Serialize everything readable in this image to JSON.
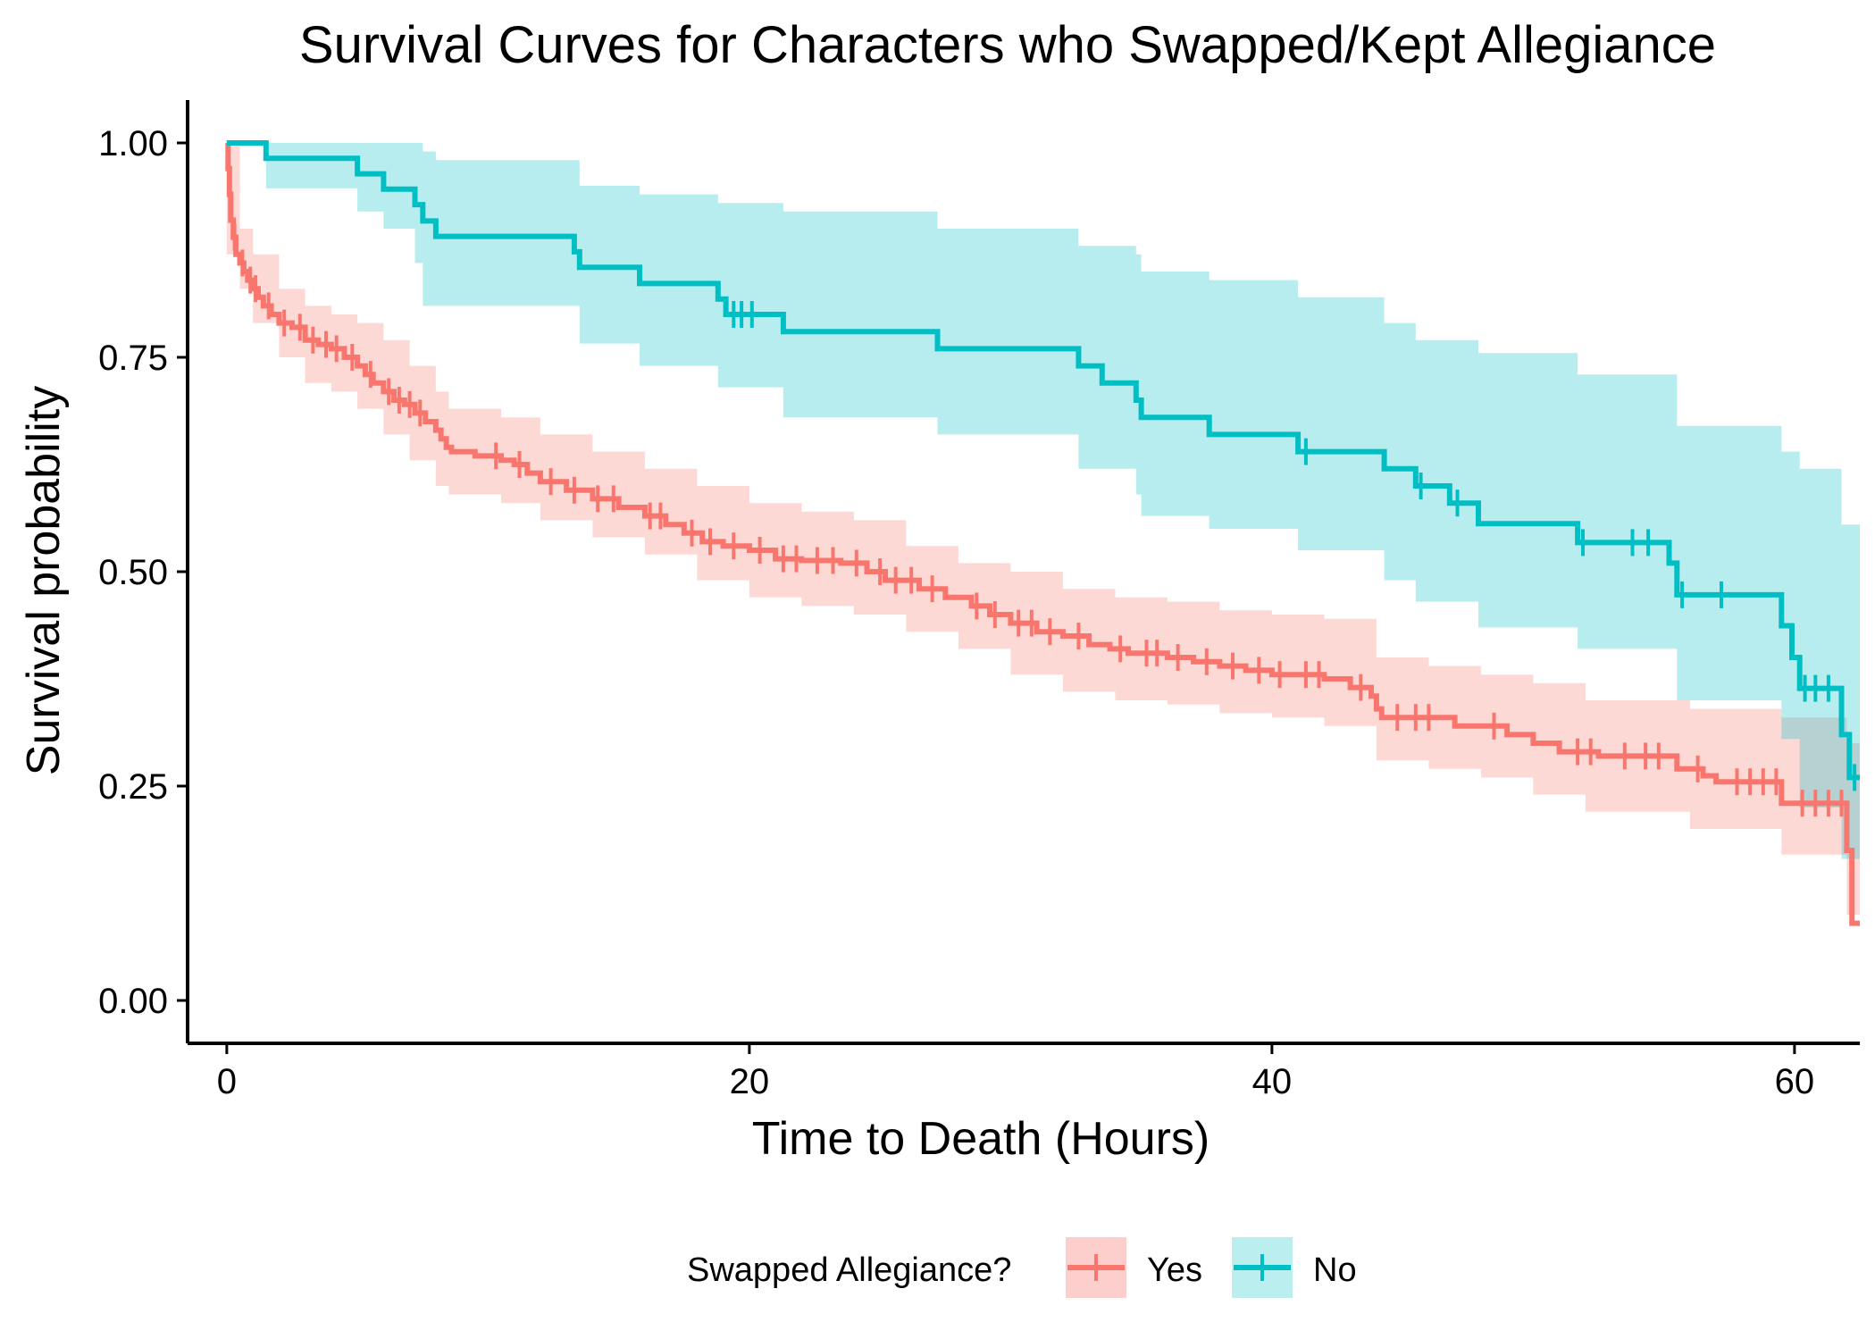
{
  "chart_data": {
    "type": "line",
    "subtype": "kaplan-meier survival curves with confidence bands and censor marks",
    "title": "Survival Curves for Characters who Swapped/Kept Allegiance",
    "xlabel": "Time to Death (Hours)",
    "ylabel": "Survival probability",
    "xlim": [
      -1.5,
      62.5
    ],
    "ylim": [
      -0.05,
      1.05
    ],
    "x_ticks": [
      0,
      20,
      40,
      60
    ],
    "x_tick_labels": [
      "0",
      "20",
      "40",
      "60"
    ],
    "y_ticks": [
      0,
      0.25,
      0.5,
      0.75,
      1.0
    ],
    "y_tick_labels": [
      "0.00",
      "0.25",
      "0.50",
      "0.75",
      "1.00"
    ],
    "grid": false,
    "legend": {
      "title": "Swapped Allegiance?",
      "position": "bottom",
      "entries": [
        "Yes",
        "No"
      ]
    },
    "series": [
      {
        "name": "Yes",
        "color": "#F8766D",
        "band_color": "#F8766D",
        "steps": [
          [
            0,
            1.0
          ],
          [
            0.05,
            0.97
          ],
          [
            0.1,
            0.94
          ],
          [
            0.15,
            0.91
          ],
          [
            0.25,
            0.89
          ],
          [
            0.35,
            0.87
          ],
          [
            0.5,
            0.86
          ],
          [
            0.65,
            0.85
          ],
          [
            0.8,
            0.84
          ],
          [
            1.0,
            0.83
          ],
          [
            1.2,
            0.82
          ],
          [
            1.4,
            0.81
          ],
          [
            1.7,
            0.8
          ],
          [
            2.0,
            0.79
          ],
          [
            2.5,
            0.785
          ],
          [
            3.0,
            0.77
          ],
          [
            3.5,
            0.765
          ],
          [
            4.0,
            0.76
          ],
          [
            4.5,
            0.75
          ],
          [
            5.0,
            0.74
          ],
          [
            5.3,
            0.73
          ],
          [
            5.6,
            0.72
          ],
          [
            6.0,
            0.71
          ],
          [
            6.4,
            0.7
          ],
          [
            6.8,
            0.695
          ],
          [
            7.2,
            0.685
          ],
          [
            7.6,
            0.675
          ],
          [
            8.0,
            0.665
          ],
          [
            8.2,
            0.655
          ],
          [
            8.4,
            0.645
          ],
          [
            8.6,
            0.64
          ],
          [
            9.5,
            0.635
          ],
          [
            10.5,
            0.63
          ],
          [
            11.0,
            0.625
          ],
          [
            11.5,
            0.615
          ],
          [
            12.0,
            0.605
          ],
          [
            13.0,
            0.595
          ],
          [
            14.0,
            0.585
          ],
          [
            15.0,
            0.575
          ],
          [
            16.0,
            0.565
          ],
          [
            16.8,
            0.555
          ],
          [
            17.5,
            0.545
          ],
          [
            18.2,
            0.535
          ],
          [
            19.0,
            0.53
          ],
          [
            20.0,
            0.525
          ],
          [
            21.0,
            0.515
          ],
          [
            22.0,
            0.513
          ],
          [
            23.5,
            0.51
          ],
          [
            24.5,
            0.5
          ],
          [
            25.2,
            0.49
          ],
          [
            26.5,
            0.48
          ],
          [
            27.5,
            0.47
          ],
          [
            28.5,
            0.46
          ],
          [
            29.2,
            0.45
          ],
          [
            30.0,
            0.44
          ],
          [
            31.0,
            0.43
          ],
          [
            32.0,
            0.425
          ],
          [
            33.0,
            0.415
          ],
          [
            33.8,
            0.41
          ],
          [
            34.5,
            0.405
          ],
          [
            36.0,
            0.4
          ],
          [
            37.0,
            0.395
          ],
          [
            38.0,
            0.39
          ],
          [
            39.0,
            0.385
          ],
          [
            40.0,
            0.38
          ],
          [
            42.0,
            0.375
          ],
          [
            43.0,
            0.365
          ],
          [
            43.8,
            0.355
          ],
          [
            44.0,
            0.34
          ],
          [
            44.2,
            0.33
          ],
          [
            47.0,
            0.32
          ],
          [
            49.0,
            0.31
          ],
          [
            50.0,
            0.3
          ],
          [
            51.0,
            0.29
          ],
          [
            52.5,
            0.285
          ],
          [
            55.5,
            0.27
          ],
          [
            56.5,
            0.262
          ],
          [
            57.0,
            0.255
          ],
          [
            59.5,
            0.23
          ],
          [
            62.0,
            0.175
          ],
          [
            62.2,
            0.09
          ]
        ],
        "x_end": 62.5,
        "band": [
          [
            0,
            0.87,
            1.0
          ],
          [
            0.5,
            0.83,
            0.9
          ],
          [
            1.0,
            0.79,
            0.87
          ],
          [
            2.0,
            0.75,
            0.83
          ],
          [
            3.0,
            0.72,
            0.81
          ],
          [
            4.0,
            0.71,
            0.8
          ],
          [
            5.0,
            0.69,
            0.79
          ],
          [
            6.0,
            0.66,
            0.77
          ],
          [
            7.0,
            0.63,
            0.74
          ],
          [
            8.0,
            0.6,
            0.71
          ],
          [
            8.5,
            0.59,
            0.69
          ],
          [
            10.5,
            0.58,
            0.68
          ],
          [
            12.0,
            0.56,
            0.66
          ],
          [
            14.0,
            0.54,
            0.64
          ],
          [
            16.0,
            0.52,
            0.62
          ],
          [
            18.0,
            0.49,
            0.6
          ],
          [
            20.0,
            0.47,
            0.58
          ],
          [
            22.0,
            0.46,
            0.57
          ],
          [
            24.0,
            0.45,
            0.56
          ],
          [
            26.0,
            0.43,
            0.53
          ],
          [
            28.0,
            0.41,
            0.51
          ],
          [
            30.0,
            0.38,
            0.5
          ],
          [
            32.0,
            0.36,
            0.48
          ],
          [
            34.0,
            0.35,
            0.47
          ],
          [
            36.0,
            0.345,
            0.465
          ],
          [
            38.0,
            0.335,
            0.455
          ],
          [
            40.0,
            0.33,
            0.45
          ],
          [
            42.0,
            0.32,
            0.445
          ],
          [
            44.0,
            0.28,
            0.4
          ],
          [
            46.0,
            0.27,
            0.39
          ],
          [
            48.0,
            0.26,
            0.38
          ],
          [
            50.0,
            0.24,
            0.37
          ],
          [
            52.0,
            0.22,
            0.35
          ],
          [
            56.0,
            0.2,
            0.34
          ],
          [
            59.5,
            0.17,
            0.33
          ],
          [
            62.0,
            0.1,
            0.3
          ],
          [
            62.5,
            0.02,
            0.26
          ]
        ],
        "censor_times": [
          0.3,
          0.6,
          0.9,
          1.1,
          1.6,
          2.2,
          2.8,
          3.3,
          3.8,
          4.2,
          4.8,
          5.5,
          6.2,
          6.6,
          7.0,
          7.4,
          10.3,
          11.2,
          12.4,
          13.3,
          14.2,
          14.8,
          16.2,
          16.6,
          17.8,
          18.5,
          19.4,
          20.4,
          21.3,
          21.8,
          22.6,
          23.2,
          24.1,
          25.0,
          25.6,
          26.2,
          27.0,
          28.7,
          29.4,
          30.3,
          30.8,
          31.5,
          32.6,
          34.2,
          35.2,
          35.6,
          36.4,
          37.5,
          38.5,
          39.5,
          40.3,
          41.3,
          41.8,
          43.4,
          44.8,
          45.5,
          46.0,
          48.5,
          51.7,
          52.2,
          53.5,
          54.3,
          54.8,
          56.3,
          57.8,
          58.3,
          58.8,
          59.3,
          60.3,
          60.8,
          61.3,
          61.8
        ]
      },
      {
        "name": "No",
        "color": "#00BFC4",
        "band_color": "#00BFC4",
        "steps": [
          [
            0,
            1.0
          ],
          [
            1.5,
            0.982
          ],
          [
            5.0,
            0.964
          ],
          [
            6.0,
            0.946
          ],
          [
            7.2,
            0.928
          ],
          [
            7.5,
            0.909
          ],
          [
            8.0,
            0.891
          ],
          [
            13.3,
            0.873
          ],
          [
            13.5,
            0.855
          ],
          [
            15.8,
            0.836
          ],
          [
            18.8,
            0.818
          ],
          [
            19.1,
            0.8
          ],
          [
            21.3,
            0.78
          ],
          [
            27.2,
            0.76
          ],
          [
            32.6,
            0.74
          ],
          [
            33.5,
            0.72
          ],
          [
            34.8,
            0.7
          ],
          [
            35.0,
            0.68
          ],
          [
            37.6,
            0.66
          ],
          [
            41.0,
            0.64
          ],
          [
            44.3,
            0.62
          ],
          [
            45.5,
            0.6
          ],
          [
            46.8,
            0.58
          ],
          [
            47.9,
            0.556
          ],
          [
            51.7,
            0.534
          ],
          [
            55.2,
            0.51
          ],
          [
            55.5,
            0.473
          ],
          [
            59.5,
            0.437
          ],
          [
            59.9,
            0.4
          ],
          [
            60.2,
            0.364
          ],
          [
            61.8,
            0.31
          ],
          [
            62.1,
            0.26
          ]
        ],
        "x_end": 62.5,
        "band": [
          [
            0,
            1.0,
            1.0
          ],
          [
            1.5,
            0.947,
            1.0
          ],
          [
            5.0,
            0.92,
            1.0
          ],
          [
            6.0,
            0.9,
            1.0
          ],
          [
            7.2,
            0.86,
            1.0
          ],
          [
            7.5,
            0.81,
            0.99
          ],
          [
            8.0,
            0.81,
            0.98
          ],
          [
            13.5,
            0.766,
            0.95
          ],
          [
            15.8,
            0.74,
            0.94
          ],
          [
            18.8,
            0.715,
            0.93
          ],
          [
            21.3,
            0.68,
            0.92
          ],
          [
            27.2,
            0.66,
            0.9
          ],
          [
            32.6,
            0.62,
            0.88
          ],
          [
            34.8,
            0.59,
            0.87
          ],
          [
            35.0,
            0.565,
            0.85
          ],
          [
            37.6,
            0.55,
            0.84
          ],
          [
            41.0,
            0.525,
            0.82
          ],
          [
            44.3,
            0.49,
            0.79
          ],
          [
            45.5,
            0.465,
            0.77
          ],
          [
            47.9,
            0.435,
            0.755
          ],
          [
            51.7,
            0.41,
            0.73
          ],
          [
            55.5,
            0.35,
            0.67
          ],
          [
            59.5,
            0.305,
            0.64
          ],
          [
            60.2,
            0.225,
            0.62
          ],
          [
            61.8,
            0.165,
            0.555
          ],
          [
            62.5,
            0.14,
            0.4
          ]
        ],
        "censor_times": [
          19.4,
          19.7,
          20.1,
          41.3,
          45.7,
          47.1,
          51.9,
          53.8,
          54.4,
          55.7,
          57.2,
          60.4,
          60.8,
          61.3,
          62.3
        ]
      }
    ]
  }
}
